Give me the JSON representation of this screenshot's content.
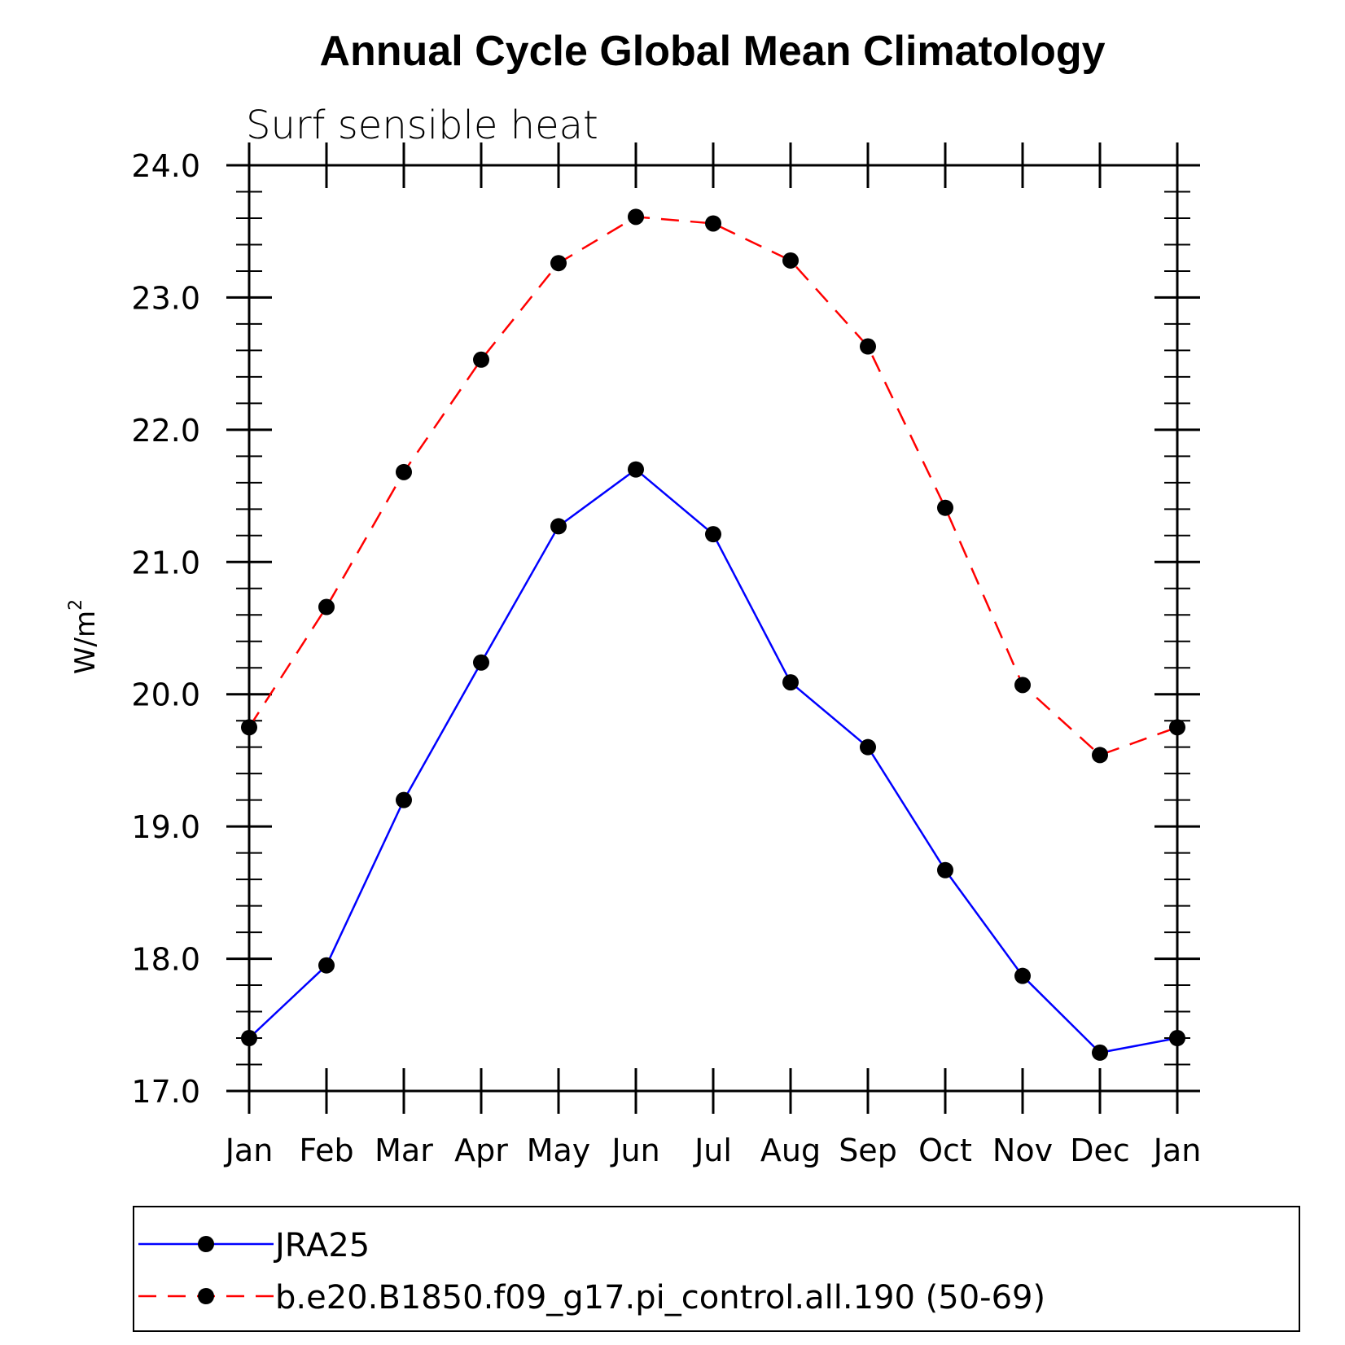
{
  "chart_data": {
    "type": "line",
    "title": "Annual Cycle Global Mean Climatology",
    "subtitle": "Surf sensible heat",
    "ylabel": "W/m",
    "ylabel_superscript": "2",
    "xlabel": "",
    "categories": [
      "Jan",
      "Feb",
      "Mar",
      "Apr",
      "May",
      "Jun",
      "Jul",
      "Aug",
      "Sep",
      "Oct",
      "Nov",
      "Dec",
      "Jan"
    ],
    "ylim": [
      17.0,
      24.0
    ],
    "yticks": [
      "17.0",
      "18.0",
      "19.0",
      "20.0",
      "21.0",
      "22.0",
      "23.0",
      "24.0"
    ],
    "y_minor_step": 0.2,
    "grid": false,
    "legend_position": "bottom",
    "series": [
      {
        "name": "JRA25",
        "color": "#0000ff",
        "dash": "solid",
        "marker": "filled-circle",
        "values": [
          17.4,
          17.95,
          19.2,
          20.24,
          21.27,
          21.7,
          21.21,
          20.09,
          19.6,
          18.67,
          17.87,
          17.29,
          17.4
        ]
      },
      {
        "name": "b.e20.B1850.f09_g17.pi_control.all.190 (50-69)",
        "color": "#ff0000",
        "dash": "dashed",
        "marker": "filled-circle",
        "values": [
          19.75,
          20.66,
          21.68,
          22.53,
          23.26,
          23.61,
          23.56,
          23.28,
          22.63,
          21.41,
          20.07,
          19.54,
          19.75
        ]
      }
    ]
  }
}
